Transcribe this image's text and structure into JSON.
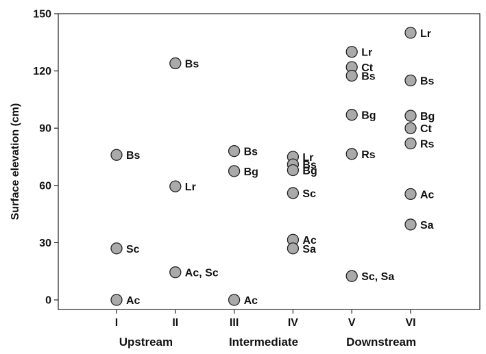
{
  "chart_data": {
    "type": "scatter",
    "ylabel": "Surface elevation (cm)",
    "ylim": [
      0,
      150
    ],
    "yticks": [
      0,
      30,
      60,
      90,
      120,
      150
    ],
    "categories": [
      "I",
      "II",
      "III",
      "IV",
      "V",
      "VI"
    ],
    "groups": [
      {
        "label": "Upstream",
        "categories": [
          "I",
          "II"
        ]
      },
      {
        "label": "Intermediate",
        "categories": [
          "III",
          "IV"
        ]
      },
      {
        "label": "Downstream",
        "categories": [
          "V",
          "VI"
        ]
      }
    ],
    "points": [
      {
        "x": "I",
        "y": 76,
        "label": "Bs"
      },
      {
        "x": "I",
        "y": 27,
        "label": "Sc"
      },
      {
        "x": "I",
        "y": 0,
        "label": "Ac"
      },
      {
        "x": "II",
        "y": 124,
        "label": "Bs"
      },
      {
        "x": "II",
        "y": 59.5,
        "label": "Lr"
      },
      {
        "x": "II",
        "y": 14.5,
        "label": "Ac, Sc"
      },
      {
        "x": "III",
        "y": 78,
        "label": "Bs"
      },
      {
        "x": "III",
        "y": 67.5,
        "label": "Bg"
      },
      {
        "x": "III",
        "y": 0,
        "label": "Ac"
      },
      {
        "x": "IV",
        "y": 75,
        "label": "Lr"
      },
      {
        "x": "IV",
        "y": 71,
        "label": "Bs"
      },
      {
        "x": "IV",
        "y": 68,
        "label": "Bg"
      },
      {
        "x": "IV",
        "y": 56,
        "label": "Sc"
      },
      {
        "x": "IV",
        "y": 31.5,
        "label": "Ac"
      },
      {
        "x": "IV",
        "y": 27,
        "label": "Sa"
      },
      {
        "x": "V",
        "y": 130,
        "label": "Lr"
      },
      {
        "x": "V",
        "y": 122,
        "label": "Ct"
      },
      {
        "x": "V",
        "y": 117.5,
        "label": "Bs"
      },
      {
        "x": "V",
        "y": 97,
        "label": "Bg"
      },
      {
        "x": "V",
        "y": 76.5,
        "label": "Rs"
      },
      {
        "x": "V",
        "y": 12.5,
        "label": "Sc, Sa"
      },
      {
        "x": "VI",
        "y": 140,
        "label": "Lr"
      },
      {
        "x": "VI",
        "y": 115,
        "label": "Bs"
      },
      {
        "x": "VI",
        "y": 96.5,
        "label": "Bg"
      },
      {
        "x": "VI",
        "y": 90,
        "label": "Ct"
      },
      {
        "x": "VI",
        "y": 82,
        "label": "Rs"
      },
      {
        "x": "VI",
        "y": 55.5,
        "label": "Ac"
      },
      {
        "x": "VI",
        "y": 39.5,
        "label": "Sa"
      }
    ],
    "marker_color": "#a9aaa9",
    "marker_edge_color": "#222222",
    "grid": false,
    "legend": false
  }
}
